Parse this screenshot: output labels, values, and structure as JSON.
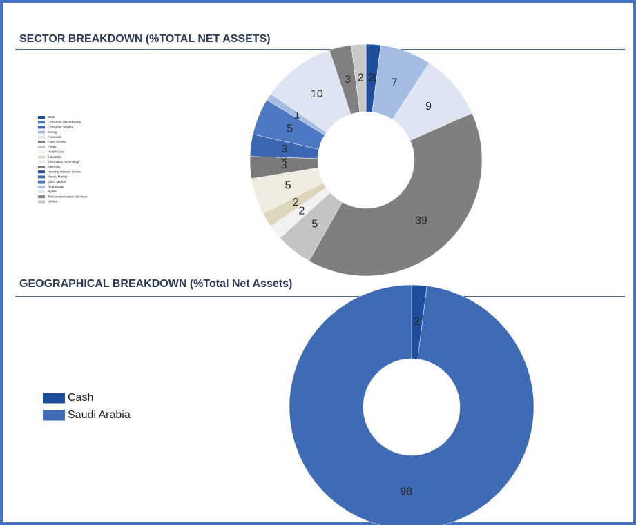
{
  "chart_data": [
    {
      "type": "donut",
      "title": "SECTOR BREAKDOWN (%TOTAL NET ASSETS)",
      "categories": [
        "Cash",
        "Consumer Discretionary",
        "Consumer Staples",
        "Energy",
        "Financials",
        "Fixed Income",
        "Funds",
        "Health Care",
        "Industrials",
        "Information Technology",
        "Materials",
        "Housing Industry Sector",
        "Money Market",
        "Other Market",
        "Real Estate",
        "Rights",
        "Telecommunication Services",
        "Utilities"
      ],
      "values": [
        2,
        0,
        0,
        7,
        9,
        39,
        5,
        2,
        2,
        5,
        3,
        0,
        3,
        5,
        1,
        10,
        3,
        2
      ],
      "colors": [
        "#1f4e9c",
        "#4a74c0",
        "#3d66b3",
        "#a6bde3",
        "#dde5f3",
        "#7f7f7f",
        "#c4c4c4",
        "#f2f2f2",
        "#ddd6bc",
        "#eeebdf",
        "#7a7a7a",
        "#1f4e9c",
        "#3d66b3",
        "#4f78c2",
        "#a6bde3",
        "#dde5f3",
        "#808080",
        "#c8c8c8"
      ],
      "legend": "left"
    },
    {
      "type": "donut",
      "title": "GEOGRAPHICAL BREAKDOWN (%Total Net Assets)",
      "categories": [
        "Cash",
        "Saudi Arabia"
      ],
      "values": [
        2,
        98
      ],
      "colors": [
        "#1f4e9c",
        "#3f6bb5"
      ],
      "legend": "left"
    }
  ]
}
